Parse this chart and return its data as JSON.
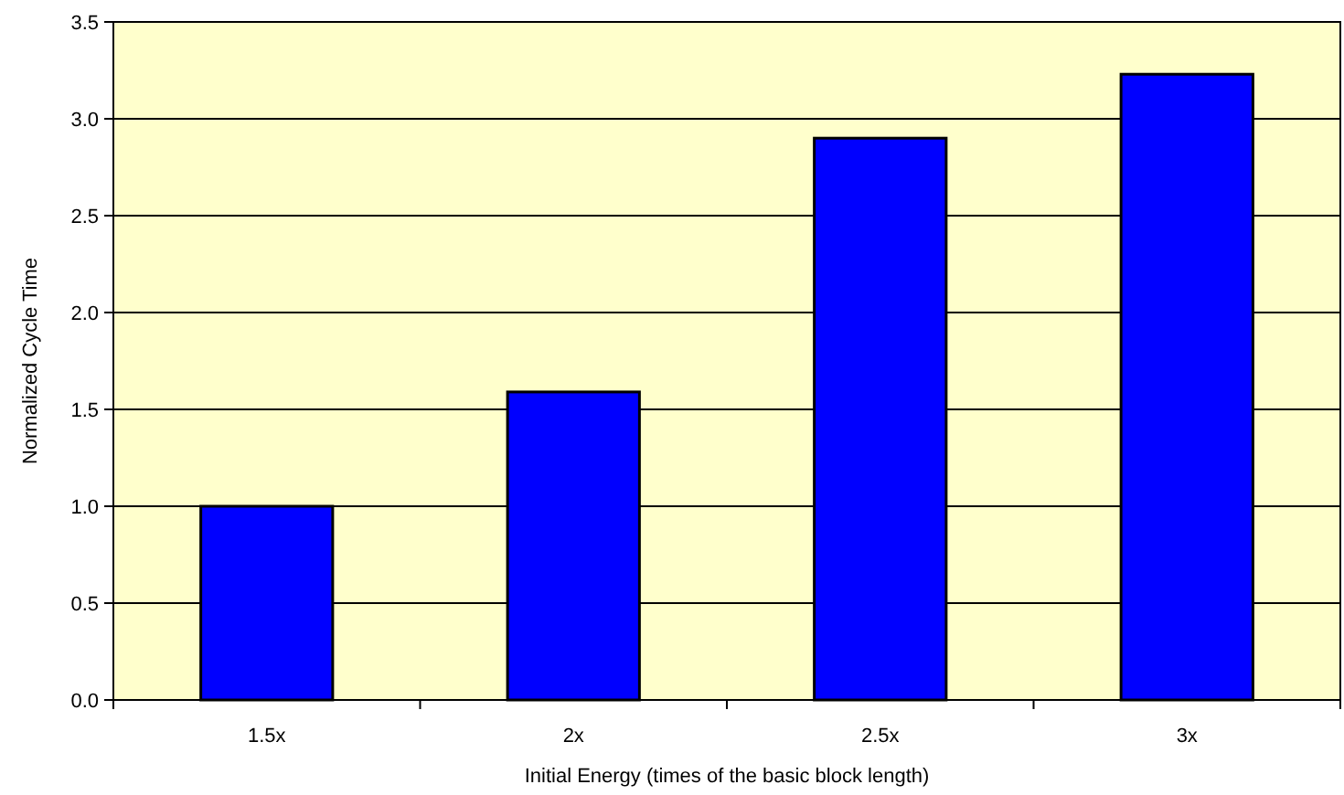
{
  "chart_data": {
    "type": "bar",
    "xlabel": "Initial Energy (times of the basic block length)",
    "ylabel": "Normalized Cycle Time",
    "categories": [
      "1.5x",
      "2x",
      "2.5x",
      "3x"
    ],
    "values": [
      1.0,
      1.59,
      2.9,
      3.23
    ],
    "color": "#0000ff",
    "ylim": [
      0,
      3.5
    ],
    "yticks": [
      {
        "value": 0,
        "label": "0.0"
      },
      {
        "value": 0.5,
        "label": "0.5"
      },
      {
        "value": 1,
        "label": "1.0"
      },
      {
        "value": 1.5,
        "label": "1.5"
      },
      {
        "value": 2,
        "label": "2.0"
      },
      {
        "value": 2.5,
        "label": "2.5"
      },
      {
        "value": 3,
        "label": "3.0"
      },
      {
        "value": 3.5,
        "label": "3.5"
      }
    ],
    "grid": "y"
  }
}
